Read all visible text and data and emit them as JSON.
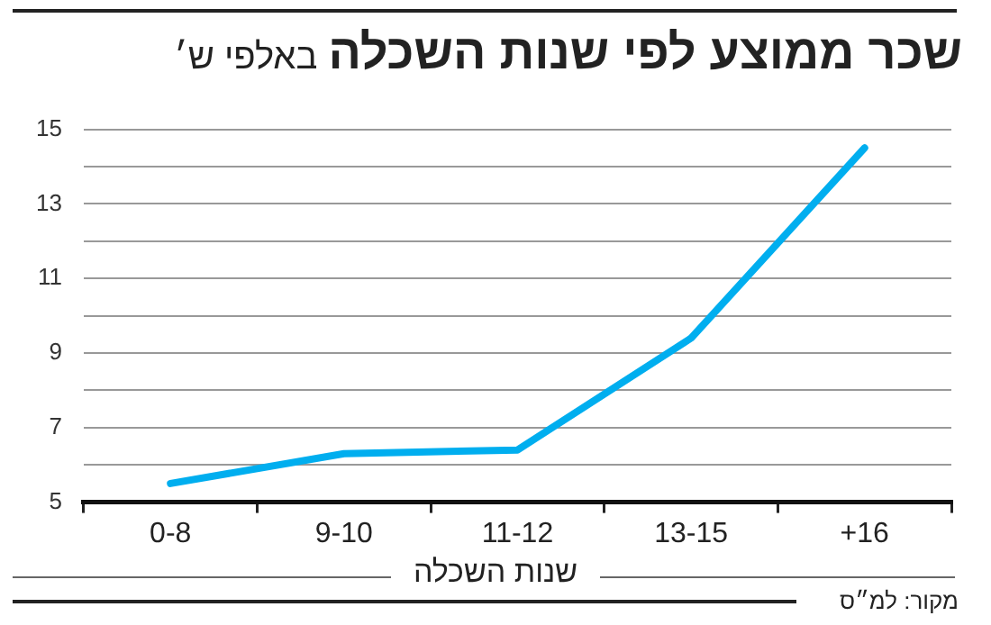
{
  "chart_data": {
    "type": "line",
    "title": "שכר ממוצע לפי שנות השכלה",
    "subtitle": "באלפי ש׳",
    "xlabel": "שנות השכלה",
    "annotations": [
      "מקור: למ״ס"
    ],
    "categories": [
      "0-8",
      "9-10",
      "11-12",
      "13-15",
      "+16"
    ],
    "series": [
      {
        "color": "#00aeef",
        "values": [
          5.5,
          6.3,
          6.4,
          9.4,
          14.5
        ]
      }
    ],
    "ylim": [
      5,
      15
    ],
    "yticks": [
      5,
      {
        "value": 6,
        "label": null
      },
      7,
      {
        "value": 8,
        "label": null
      },
      9,
      {
        "value": 10,
        "label": null
      },
      11,
      {
        "value": 12,
        "label": null
      },
      13,
      {
        "value": 14,
        "label": null
      },
      15
    ],
    "grid": "y",
    "legend": false,
    "marker": "none",
    "line_style": "solid"
  }
}
